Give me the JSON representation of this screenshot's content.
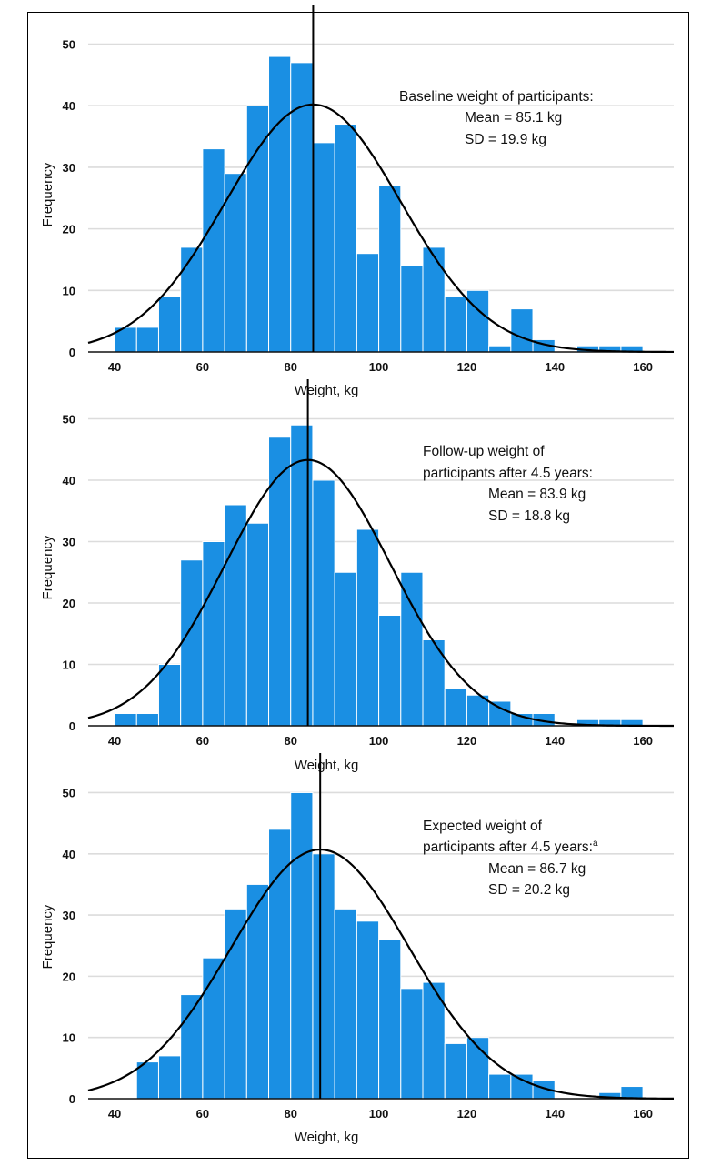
{
  "colors": {
    "bar": "#1a8fe3",
    "bar_edge": "#ffffff",
    "curve": "#000000",
    "gridline": "#dcdcdc",
    "axis": "#111111",
    "frame": "#000000"
  },
  "chart_data": [
    {
      "type": "bar",
      "xlabel": "Weight, kg",
      "ylabel": "Frequency",
      "xlim": [
        34,
        167
      ],
      "ylim": [
        0,
        52
      ],
      "xticks": [
        40,
        60,
        80,
        100,
        120,
        140,
        160
      ],
      "yticks": [
        0,
        10,
        20,
        30,
        40,
        50
      ],
      "grid": true,
      "bin_width": 5,
      "bin_starts": [
        40,
        45,
        50,
        55,
        60,
        65,
        70,
        75,
        80,
        85,
        90,
        95,
        100,
        105,
        110,
        115,
        120,
        125,
        130,
        135,
        140,
        145,
        150,
        155
      ],
      "values": [
        4,
        4,
        9,
        17,
        33,
        29,
        40,
        48,
        47,
        34,
        37,
        16,
        27,
        14,
        17,
        9,
        10,
        1,
        7,
        2,
        0,
        1,
        1,
        1
      ],
      "fit_curve": {
        "type": "normal",
        "mean": 85.1,
        "sd": 19.9,
        "peak_frequency": 40.2
      },
      "mean_line_x": 85.1,
      "annotation": {
        "lines": [
          "Baseline weight of participants:",
          "Mean = 85.1 kg",
          "SD = 19.9 kg"
        ],
        "superscript": ""
      }
    },
    {
      "type": "bar",
      "xlabel": "Weight, kg",
      "ylabel": "Frequency",
      "xlim": [
        34,
        167
      ],
      "ylim": [
        0,
        52
      ],
      "xticks": [
        40,
        60,
        80,
        100,
        120,
        140,
        160
      ],
      "yticks": [
        0,
        10,
        20,
        30,
        40,
        50
      ],
      "grid": true,
      "bin_width": 5,
      "bin_starts": [
        40,
        45,
        50,
        55,
        60,
        65,
        70,
        75,
        80,
        85,
        90,
        95,
        100,
        105,
        110,
        115,
        120,
        125,
        130,
        135,
        140,
        145,
        150,
        155
      ],
      "values": [
        2,
        2,
        10,
        27,
        30,
        36,
        33,
        47,
        49,
        40,
        25,
        32,
        18,
        25,
        14,
        6,
        5,
        4,
        2,
        2,
        0,
        1,
        1,
        1
      ],
      "fit_curve": {
        "type": "normal",
        "mean": 83.9,
        "sd": 18.8,
        "peak_frequency": 43.3
      },
      "mean_line_x": 83.9,
      "annotation": {
        "lines": [
          "Follow-up weight of",
          "participants after 4.5 years:",
          "Mean = 83.9 kg",
          "SD = 18.8 kg"
        ],
        "superscript": ""
      }
    },
    {
      "type": "bar",
      "xlabel": "Weight, kg",
      "ylabel": "Frequency",
      "xlim": [
        34,
        167
      ],
      "ylim": [
        0,
        52
      ],
      "xticks": [
        40,
        60,
        80,
        100,
        120,
        140,
        160
      ],
      "yticks": [
        0,
        10,
        20,
        30,
        40,
        50
      ],
      "grid": true,
      "bin_width": 5,
      "bin_starts": [
        45,
        50,
        55,
        60,
        65,
        70,
        75,
        80,
        85,
        90,
        95,
        100,
        105,
        110,
        115,
        120,
        125,
        130,
        135,
        140,
        145,
        150,
        155
      ],
      "values": [
        6,
        7,
        17,
        23,
        31,
        35,
        44,
        50,
        40,
        31,
        29,
        26,
        18,
        19,
        9,
        10,
        4,
        4,
        3,
        0,
        0,
        1,
        2
      ],
      "fit_curve": {
        "type": "normal",
        "mean": 86.7,
        "sd": 20.2,
        "peak_frequency": 40.7
      },
      "mean_line_x": 86.7,
      "annotation": {
        "lines": [
          "Expected weight of",
          "participants after 4.5 years:",
          "Mean = 86.7 kg",
          "SD = 20.2 kg"
        ],
        "superscript": "a"
      }
    }
  ]
}
